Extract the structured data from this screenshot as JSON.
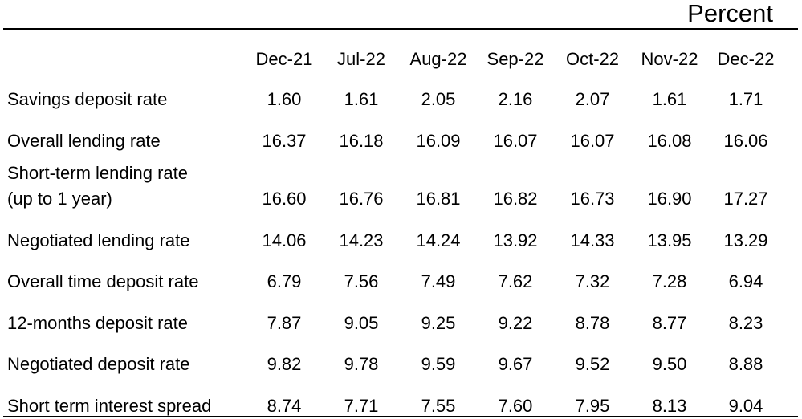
{
  "unit": "Percent",
  "columns": [
    "Dec-21",
    "Jul-22",
    "Aug-22",
    "Sep-22",
    "Oct-22",
    "Nov-22",
    "Dec-22"
  ],
  "rows": [
    {
      "label": "Savings deposit rate",
      "values": [
        "1.60",
        "1.61",
        "2.05",
        "2.16",
        "2.07",
        "1.61",
        "1.71"
      ]
    },
    {
      "label": "Overall lending rate",
      "values": [
        "16.37",
        "16.18",
        "16.09",
        "16.07",
        "16.07",
        "16.08",
        "16.06"
      ]
    },
    {
      "label_line1": "Short-term lending  rate",
      "label_line2": "(up to 1 year)",
      "values": [
        "16.60",
        "16.76",
        "16.81",
        "16.82",
        "16.73",
        "16.90",
        "17.27"
      ]
    },
    {
      "label": "Negotiated lending rate",
      "values": [
        "14.06",
        "14.23",
        "14.24",
        "13.92",
        "14.33",
        "13.95",
        "13.29"
      ]
    },
    {
      "label": "Overall time deposit rate",
      "values": [
        "6.79",
        "7.56",
        "7.49",
        "7.62",
        "7.32",
        "7.28",
        "6.94"
      ]
    },
    {
      "label": "12-months deposit rate",
      "values": [
        "7.87",
        "9.05",
        "9.25",
        "9.22",
        "8.78",
        "8.77",
        "8.23"
      ]
    },
    {
      "label": "Negotiated deposit rate",
      "values": [
        "9.82",
        "9.78",
        "9.59",
        "9.67",
        "9.52",
        "9.50",
        "8.88"
      ]
    },
    {
      "label": "Short term interest spread",
      "values": [
        "8.74",
        "7.71",
        "7.55",
        "7.60",
        "7.95",
        "8.13",
        "9.04"
      ]
    }
  ]
}
